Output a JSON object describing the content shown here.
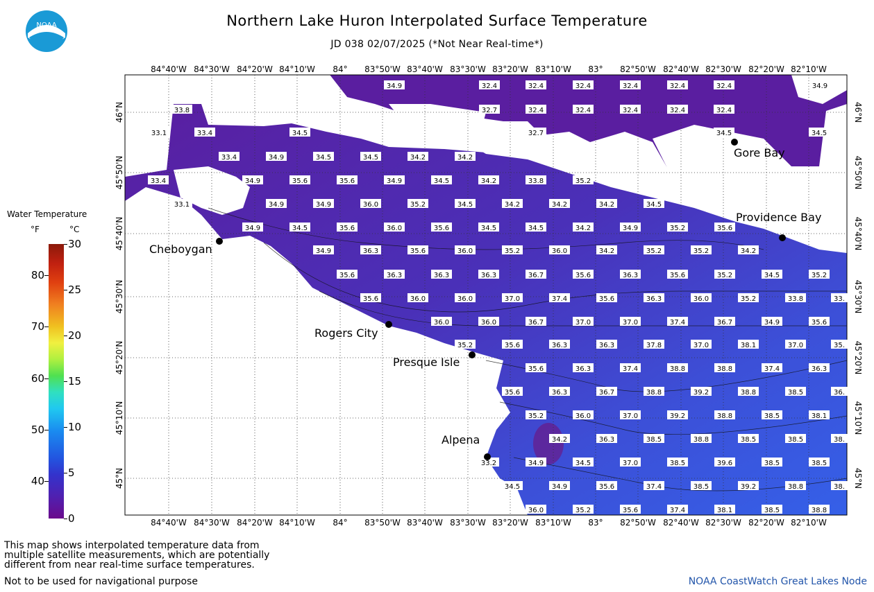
{
  "header": {
    "title": "Northern Lake Huron Interpolated Surface Temperature",
    "subtitle": "JD 038 02/07/2025 (*Not Near Real-time*)",
    "logo_text": "NOAA"
  },
  "legend": {
    "title": "Water Temperature",
    "unit_f": "°F",
    "unit_c": "°C",
    "ticks_f": [
      "80",
      "70",
      "60",
      "50",
      "40"
    ],
    "ticks_c": [
      "30",
      "25",
      "20",
      "15",
      "10",
      "5",
      "0"
    ]
  },
  "axes": {
    "lon_labels": [
      "84°40'W",
      "84°30'W",
      "84°20'W",
      "84°10'W",
      "84°",
      "83°50'W",
      "83°40'W",
      "83°30'W",
      "83°20'W",
      "83°10'W",
      "83°",
      "82°50'W",
      "82°40'W",
      "82°30'W",
      "82°20'W",
      "82°10'W"
    ],
    "lat_labels": [
      "46°N",
      "45°50'N",
      "45°40'N",
      "45°30'N",
      "45°20'N",
      "45°10'N",
      "45°N"
    ]
  },
  "cities": [
    {
      "name": "Cheboygan"
    },
    {
      "name": "Rogers City"
    },
    {
      "name": "Presque Isle"
    },
    {
      "name": "Alpena"
    },
    {
      "name": "Gore Bay"
    },
    {
      "name": "Providence Bay"
    }
  ],
  "temperature_rows": [
    [
      "34.9",
      "32.4",
      "32.4",
      "32.4",
      "32.4",
      "32.4",
      "32.4",
      "34.9"
    ],
    [
      "33.8",
      "32.7",
      "32.4",
      "32.4",
      "32.4",
      "32.4",
      "32.4"
    ],
    [
      "33.1",
      "33.4",
      "34.5",
      "32.7",
      "34.5",
      "34.5"
    ],
    [
      "33.4",
      "34.9",
      "34.5",
      "34.5",
      "34.2",
      "34.2"
    ],
    [
      "33.4",
      "34.9",
      "35.6",
      "35.6",
      "34.9",
      "34.5",
      "34.2",
      "33.8",
      "35.2"
    ],
    [
      "33.1",
      "34.9",
      "34.9",
      "36.0",
      "35.2",
      "34.5",
      "34.2",
      "34.2",
      "34.2",
      "34.5"
    ],
    [
      "34.9",
      "34.5",
      "35.6",
      "36.0",
      "35.6",
      "34.5",
      "34.5",
      "34.2",
      "34.9",
      "35.2",
      "35.6"
    ],
    [
      "34.9",
      "36.3",
      "35.6",
      "36.0",
      "35.2",
      "36.0",
      "34.2",
      "35.2",
      "35.2",
      "34.2"
    ],
    [
      "35.6",
      "36.3",
      "36.3",
      "36.3",
      "36.7",
      "35.6",
      "36.3",
      "35.6",
      "35.2",
      "34.5",
      "35.2"
    ],
    [
      "35.6",
      "36.0",
      "36.0",
      "37.0",
      "37.4",
      "35.6",
      "36.3",
      "36.0",
      "35.2",
      "33.8",
      "33."
    ],
    [
      "36.0",
      "36.0",
      "36.7",
      "37.0",
      "37.0",
      "37.4",
      "36.7",
      "34.9",
      "35.6"
    ],
    [
      "35.2",
      "35.6",
      "36.3",
      "36.3",
      "37.8",
      "37.0",
      "38.1",
      "37.0",
      "35."
    ],
    [
      "35.6",
      "36.3",
      "37.4",
      "38.8",
      "38.8",
      "37.4",
      "36.3"
    ],
    [
      "35.6",
      "36.3",
      "36.7",
      "38.8",
      "39.2",
      "38.8",
      "38.5",
      "36."
    ],
    [
      "35.2",
      "36.0",
      "37.0",
      "39.2",
      "38.8",
      "38.5",
      "38.1"
    ],
    [
      "34.2",
      "36.3",
      "38.5",
      "38.8",
      "38.5",
      "38.5",
      "38."
    ],
    [
      "33.2",
      "34.9",
      "34.5",
      "37.0",
      "38.5",
      "39.6",
      "38.5",
      "38.5"
    ],
    [
      "34.5",
      "34.9",
      "35.6",
      "37.4",
      "38.5",
      "39.2",
      "38.8",
      "38."
    ],
    [
      "36.0",
      "35.2",
      "35.6",
      "37.4",
      "38.1",
      "38.5",
      "38.8"
    ]
  ],
  "footer": {
    "note": [
      "This map shows interpolated temperature data from",
      "multiple satellite measurements, which are potentially",
      "different from near real-time surface temperatures."
    ],
    "disclaimer": "Not to be used for navigational purpose",
    "credit": "NOAA CoastWatch Great Lakes Node"
  },
  "colors": {
    "cold": "#5a1ea0",
    "mid": "#4a3cc0",
    "warm": "#3c5ae0",
    "land": "#ffffff"
  }
}
